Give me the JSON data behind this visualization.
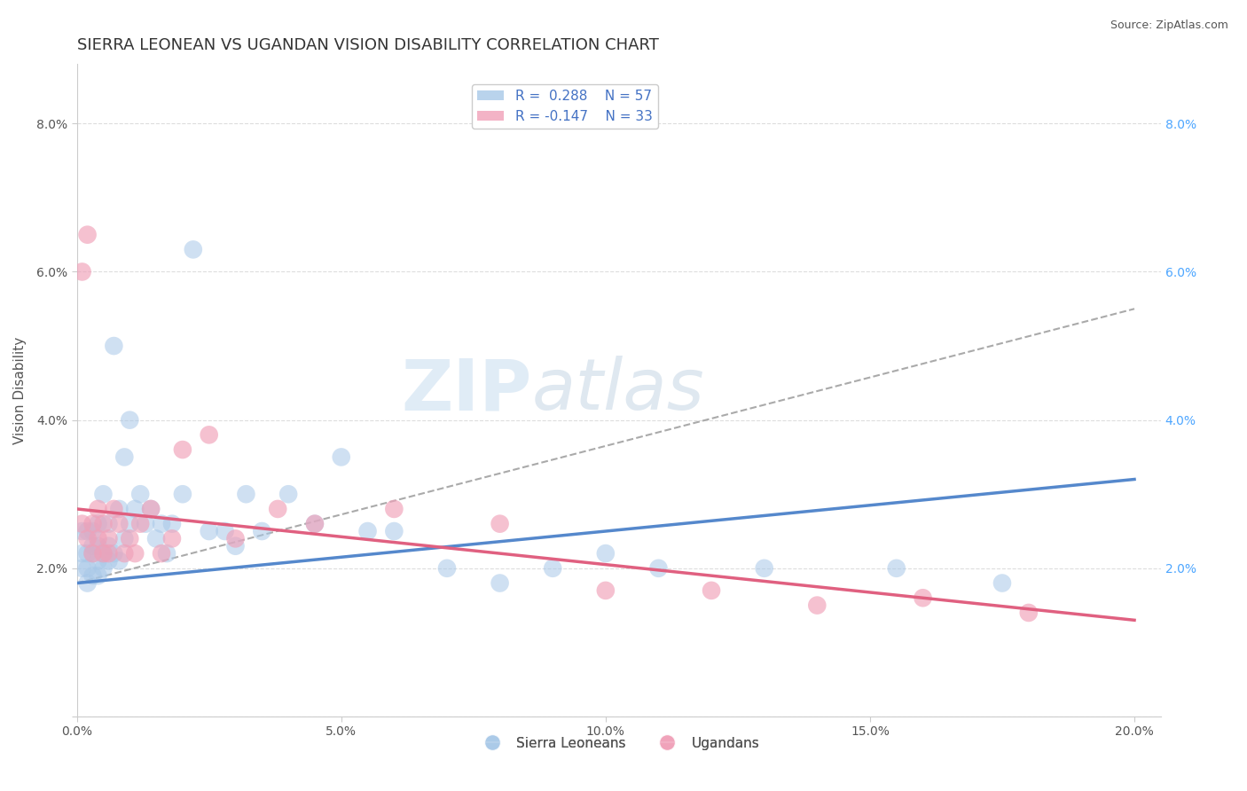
{
  "title": "SIERRA LEONEAN VS UGANDAN VISION DISABILITY CORRELATION CHART",
  "source": "Source: ZipAtlas.com",
  "ylabel": "Vision Disability",
  "xlim": [
    0.0,
    0.205
  ],
  "ylim": [
    0.0,
    0.088
  ],
  "xticks": [
    0.0,
    0.05,
    0.1,
    0.15,
    0.2
  ],
  "xtick_labels": [
    "0.0%",
    "5.0%",
    "10.0%",
    "15.0%",
    "20.0%"
  ],
  "yticks": [
    0.0,
    0.02,
    0.04,
    0.06,
    0.08
  ],
  "ytick_labels": [
    "",
    "2.0%",
    "4.0%",
    "6.0%",
    "8.0%"
  ],
  "blue_color": "#a8c8e8",
  "pink_color": "#f0a0b8",
  "legend_blue_label": "R =  0.288    N = 57",
  "legend_pink_label": "R = -0.147    N = 33",
  "legend_blue_series": "Sierra Leoneans",
  "legend_pink_series": "Ugandans",
  "blue_scatter_x": [
    0.001,
    0.001,
    0.001,
    0.002,
    0.002,
    0.002,
    0.002,
    0.003,
    0.003,
    0.003,
    0.003,
    0.004,
    0.004,
    0.004,
    0.004,
    0.005,
    0.005,
    0.005,
    0.006,
    0.006,
    0.006,
    0.007,
    0.007,
    0.008,
    0.008,
    0.009,
    0.009,
    0.01,
    0.01,
    0.011,
    0.012,
    0.013,
    0.014,
    0.015,
    0.016,
    0.017,
    0.018,
    0.02,
    0.022,
    0.025,
    0.028,
    0.03,
    0.032,
    0.035,
    0.04,
    0.045,
    0.05,
    0.055,
    0.06,
    0.07,
    0.08,
    0.09,
    0.1,
    0.11,
    0.13,
    0.155,
    0.175
  ],
  "blue_scatter_y": [
    0.02,
    0.022,
    0.025,
    0.018,
    0.02,
    0.022,
    0.025,
    0.019,
    0.022,
    0.023,
    0.025,
    0.019,
    0.021,
    0.023,
    0.026,
    0.02,
    0.022,
    0.03,
    0.021,
    0.023,
    0.026,
    0.022,
    0.05,
    0.021,
    0.028,
    0.024,
    0.035,
    0.026,
    0.04,
    0.028,
    0.03,
    0.026,
    0.028,
    0.024,
    0.026,
    0.022,
    0.026,
    0.03,
    0.063,
    0.025,
    0.025,
    0.023,
    0.03,
    0.025,
    0.03,
    0.026,
    0.035,
    0.025,
    0.025,
    0.02,
    0.018,
    0.02,
    0.022,
    0.02,
    0.02,
    0.02,
    0.018
  ],
  "pink_scatter_x": [
    0.001,
    0.001,
    0.002,
    0.002,
    0.003,
    0.003,
    0.004,
    0.004,
    0.005,
    0.005,
    0.006,
    0.006,
    0.007,
    0.008,
    0.009,
    0.01,
    0.011,
    0.012,
    0.014,
    0.016,
    0.018,
    0.02,
    0.025,
    0.03,
    0.038,
    0.045,
    0.06,
    0.08,
    0.1,
    0.12,
    0.14,
    0.16,
    0.18
  ],
  "pink_scatter_y": [
    0.026,
    0.06,
    0.024,
    0.065,
    0.022,
    0.026,
    0.024,
    0.028,
    0.022,
    0.026,
    0.022,
    0.024,
    0.028,
    0.026,
    0.022,
    0.024,
    0.022,
    0.026,
    0.028,
    0.022,
    0.024,
    0.036,
    0.038,
    0.024,
    0.028,
    0.026,
    0.028,
    0.026,
    0.017,
    0.017,
    0.015,
    0.016,
    0.014
  ],
  "blue_line_y_start": 0.018,
  "blue_line_y_end": 0.032,
  "pink_line_y_start": 0.028,
  "pink_line_y_end": 0.013,
  "dashed_line_y_start": 0.018,
  "dashed_line_y_end": 0.055,
  "watermark_zip": "ZIP",
  "watermark_atlas": "atlas",
  "background_color": "#ffffff",
  "grid_color": "#dddddd",
  "title_fontsize": 13,
  "axis_label_fontsize": 11,
  "tick_fontsize": 10
}
